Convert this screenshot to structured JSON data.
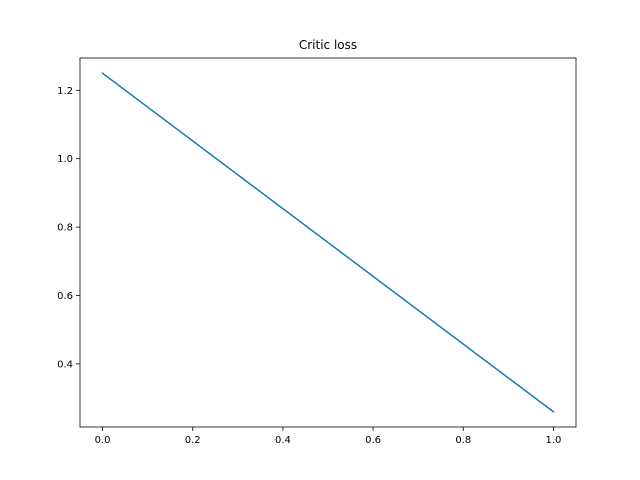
{
  "chart_data": {
    "type": "line",
    "title": "Critic loss",
    "xlabel": "",
    "ylabel": "",
    "xlim": [
      -0.05,
      1.05
    ],
    "ylim": [
      0.2155,
      1.2945
    ],
    "xticks": [
      0.0,
      0.2,
      0.4,
      0.6,
      0.8,
      1.0
    ],
    "xtick_labels": [
      "0.0",
      "0.2",
      "0.4",
      "0.6",
      "0.8",
      "1.0"
    ],
    "yticks": [
      0.4,
      0.6,
      0.8,
      1.0,
      1.2
    ],
    "ytick_labels": [
      "0.4",
      "0.6",
      "0.8",
      "1.0",
      "1.2"
    ],
    "grid": false,
    "series": [
      {
        "x": [
          0.0,
          1.0
        ],
        "y": [
          1.25,
          0.26
        ],
        "color": "#1f77b4"
      }
    ]
  }
}
